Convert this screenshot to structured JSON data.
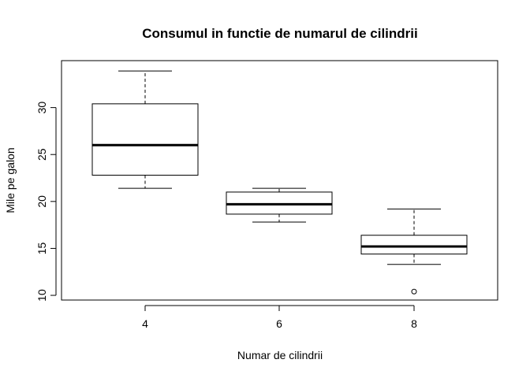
{
  "chart_data": {
    "type": "boxplot",
    "title": "Consumul in functie de numarul de cilindrii",
    "xlabel": "Numar de cilindrii",
    "ylabel": "Mile pe galon",
    "categories": [
      "4",
      "6",
      "8"
    ],
    "ylim": [
      9.5,
      35
    ],
    "yticks": [
      "10",
      "15",
      "20",
      "25",
      "30"
    ],
    "boxes": [
      {
        "category": "4",
        "min": 21.4,
        "q1": 22.8,
        "median": 26.0,
        "q3": 30.4,
        "max": 33.9,
        "outliers": []
      },
      {
        "category": "6",
        "min": 17.8,
        "q1": 18.65,
        "median": 19.7,
        "q3": 21.0,
        "max": 21.4,
        "outliers": []
      },
      {
        "category": "8",
        "min": 13.3,
        "q1": 14.4,
        "median": 15.2,
        "q3": 16.4,
        "max": 19.2,
        "outliers": [
          10.4
        ]
      }
    ],
    "grid": false,
    "legend": "none"
  }
}
